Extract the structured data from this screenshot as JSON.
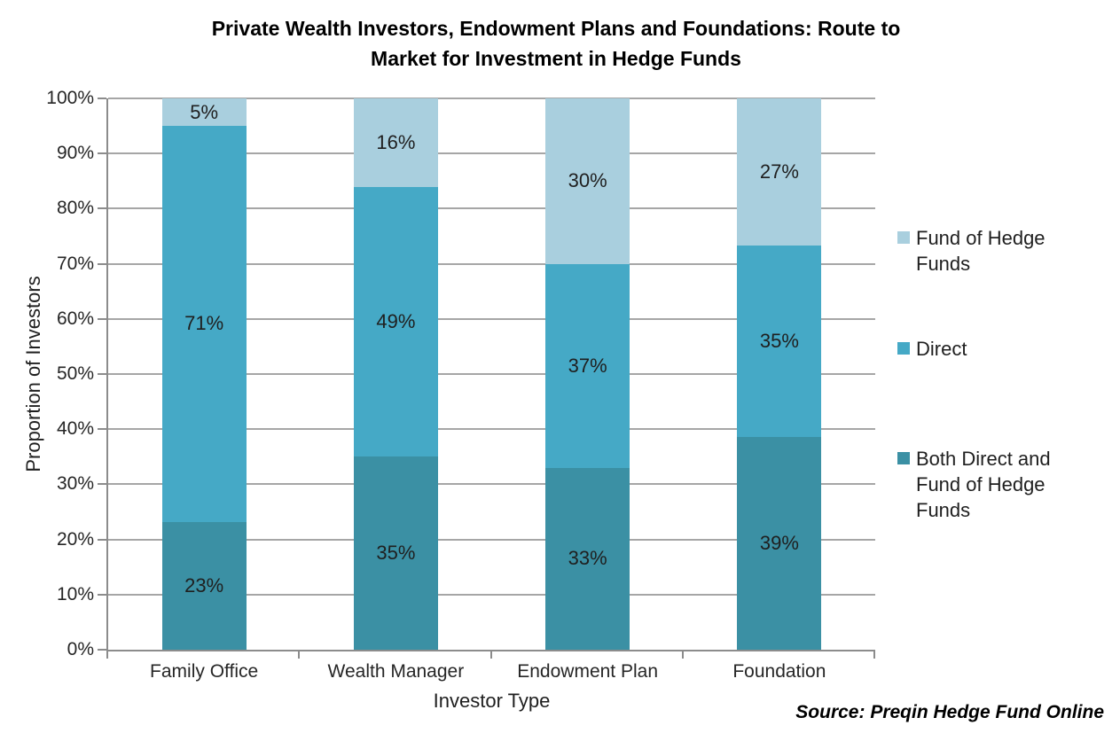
{
  "header": {
    "title_line1": "Private Wealth Investors, Endowment Plans and Foundations: Route to",
    "title_line2": "Market for Investment in Hedge Funds"
  },
  "source_note": "Source: Preqin Hedge Fund Online",
  "chart_data": {
    "type": "bar",
    "stacked": true,
    "title": "Private Wealth Investors, Endowment Plans and Foundations: Route to Market for Investment in Hedge Funds",
    "xlabel": "Investor Type",
    "ylabel": "Proportion of Investors",
    "categories": [
      "Family Office",
      "Wealth Manager",
      "Endowment Plan",
      "Foundation"
    ],
    "series": [
      {
        "name": "Both Direct and Fund of Hedge Funds",
        "color": "#3B90A4",
        "values": [
          23,
          35,
          33,
          39
        ]
      },
      {
        "name": "Direct",
        "color": "#45A9C6",
        "values": [
          71,
          49,
          37,
          35
        ]
      },
      {
        "name": "Fund of Hedge Funds",
        "color": "#A9CFDE",
        "values": [
          5,
          16,
          30,
          27
        ]
      }
    ],
    "ylim": [
      0,
      100
    ],
    "ytick_step": 10,
    "ytick_suffix": "%",
    "value_suffix": "%",
    "grid": true,
    "legend_position": "right",
    "legend_order_top_to_bottom": [
      "Fund of Hedge Funds",
      "Direct",
      "Both Direct and Fund of Hedge Funds"
    ]
  }
}
